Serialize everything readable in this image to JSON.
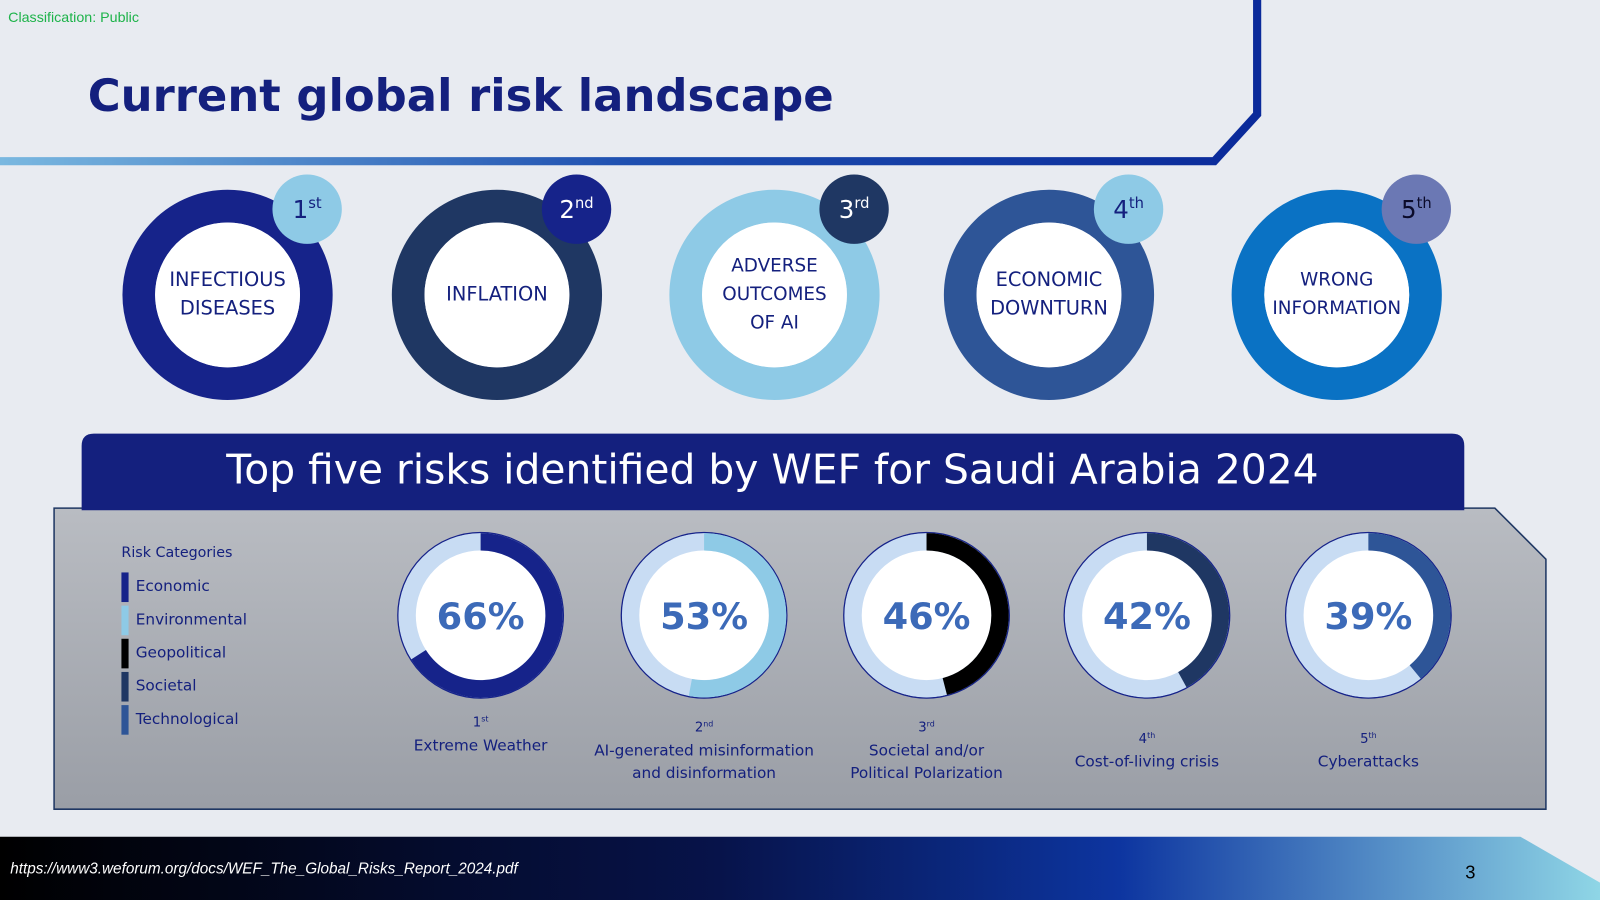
{
  "classification": "Classification: Public",
  "title": "Current global risk landscape",
  "landscape": [
    {
      "rank": "1",
      "suffix": "st",
      "lines": [
        "INFECTIOUS",
        "DISEASES"
      ],
      "color": "#16238a",
      "badge_color": "#8ecae6",
      "badge_text_color": "#14207e"
    },
    {
      "rank": "2",
      "suffix": "nd",
      "lines": [
        "INFLATION"
      ],
      "color": "#1f3763",
      "badge_color": "#16238a",
      "badge_text_color": "#ffffff"
    },
    {
      "rank": "3",
      "suffix": "rd",
      "lines": [
        "ADVERSE",
        "OUTCOMES",
        "OF AI"
      ],
      "color": "#8ecae6",
      "badge_color": "#1f3763",
      "badge_text_color": "#ffffff"
    },
    {
      "rank": "4",
      "suffix": "th",
      "lines": [
        "ECONOMIC",
        "DOWNTURN"
      ],
      "color": "#2e5597",
      "badge_color": "#8ecae6",
      "badge_text_color": "#14207e"
    },
    {
      "rank": "5",
      "suffix": "th",
      "lines": [
        "WRONG",
        "INFORMATION"
      ],
      "color": "#0a72c4",
      "badge_color": "#6b78b4",
      "badge_text_color": "#0b0b2a"
    }
  ],
  "banner": "Top five risks identified by WEF for Saudi Arabia 2024",
  "legend": {
    "title": "Risk Categories",
    "items": [
      {
        "name": "Economic",
        "color": "#16238a"
      },
      {
        "name": "Environmental",
        "color": "#8ecae6"
      },
      {
        "name": "Geopolitical",
        "color": "#000000"
      },
      {
        "name": "Societal",
        "color": "#1f3763"
      },
      {
        "name": "Technological",
        "color": "#2e5597"
      }
    ]
  },
  "risks": [
    {
      "value": 66,
      "value_label": "66%",
      "rank": "1",
      "suffix": "st",
      "lines": [
        "Extreme Weather"
      ],
      "color": "#16238a"
    },
    {
      "value": 53,
      "value_label": "53%",
      "rank": "2",
      "suffix": "nd",
      "lines": [
        "AI-generated misinformation",
        "and disinformation"
      ],
      "color": "#8ecae6"
    },
    {
      "value": 46,
      "value_label": "46%",
      "rank": "3",
      "suffix": "rd",
      "lines": [
        "Societal and/or",
        "Political Polarization"
      ],
      "color": "#000000"
    },
    {
      "value": 42,
      "value_label": "42%",
      "rank": "4",
      "suffix": "th",
      "lines": [
        "Cost-of-living crisis"
      ],
      "color": "#1f3763"
    },
    {
      "value": 39,
      "value_label": "39%",
      "rank": "5",
      "suffix": "th",
      "lines": [
        "Cyberattacks"
      ],
      "color": "#2e5597"
    }
  ],
  "footer": {
    "source": "https://www3.weforum.org/docs/WEF_The_Global_Risks_Report_2024.pdf",
    "page": "3"
  }
}
